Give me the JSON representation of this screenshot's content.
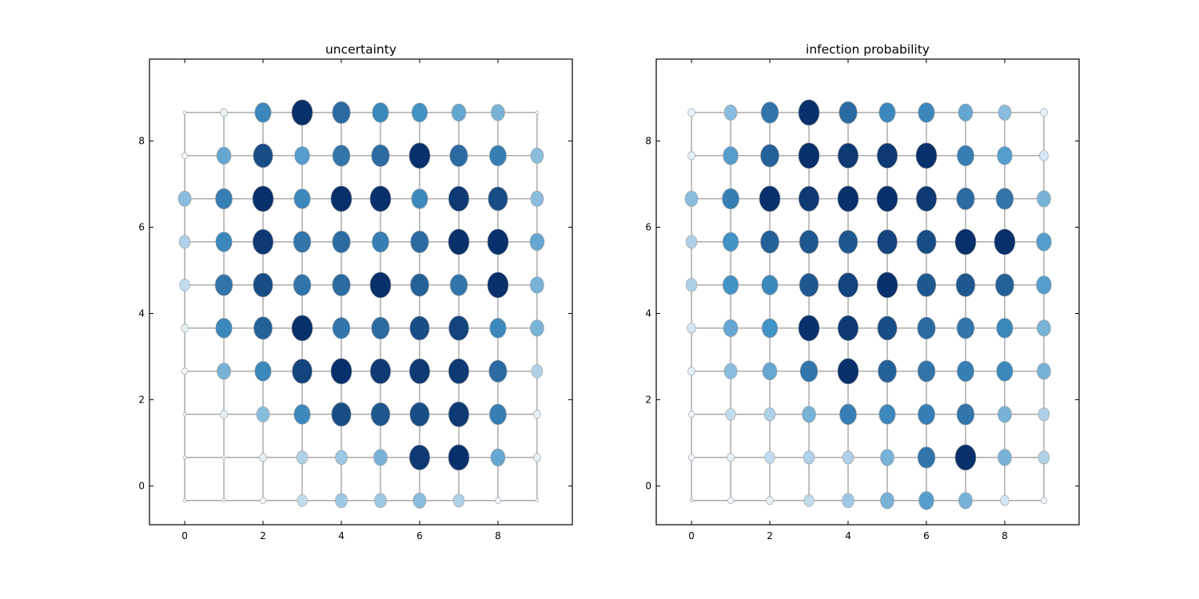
{
  "chart_data": [
    {
      "type": "scatter",
      "title": "uncertainty",
      "xlabel": "",
      "ylabel": "",
      "xlim": [
        -0.9,
        9.9
      ],
      "ylim": [
        -0.9,
        9.9
      ],
      "xticks": [
        0,
        2,
        4,
        6,
        8
      ],
      "yticks": [
        0,
        2,
        4,
        6,
        8
      ],
      "grid_x": [
        0,
        1,
        2,
        3,
        4,
        5,
        6,
        7,
        8,
        9
      ],
      "grid_y": [
        -0.34,
        0.66,
        1.66,
        2.66,
        3.66,
        4.66,
        5.66,
        6.66,
        7.66,
        8.66
      ],
      "colormap": "Blues",
      "colors": {
        "low": "#f7fbff",
        "mid": "#4292c6",
        "high": "#08306b",
        "edge": "#999999",
        "grid": "#808080"
      },
      "rows": [
        {
          "y": 8.66,
          "values": [
            0,
            0.05,
            0.55,
            1.0,
            0.7,
            0.55,
            0.5,
            0.4,
            0.35,
            0
          ]
        },
        {
          "y": 7.66,
          "values": [
            0.02,
            0.4,
            0.85,
            0.45,
            0.65,
            0.7,
            1.0,
            0.7,
            0.6,
            0.3
          ]
        },
        {
          "y": 6.66,
          "values": [
            0.3,
            0.6,
            1.0,
            0.55,
            1.0,
            1.0,
            0.55,
            0.95,
            0.85,
            0.3
          ]
        },
        {
          "y": 5.66,
          "values": [
            0.2,
            0.55,
            0.95,
            0.65,
            0.7,
            0.6,
            0.7,
            1.0,
            1.0,
            0.4
          ]
        },
        {
          "y": 4.66,
          "values": [
            0.15,
            0.65,
            0.85,
            0.65,
            0.7,
            1.0,
            0.75,
            0.65,
            1.0,
            0.35
          ]
        },
        {
          "y": 3.66,
          "values": [
            0.05,
            0.55,
            0.75,
            1.0,
            0.65,
            0.7,
            0.85,
            0.9,
            0.55,
            0.35
          ]
        },
        {
          "y": 2.66,
          "values": [
            0.02,
            0.35,
            0.55,
            0.9,
            1.0,
            0.95,
            0.95,
            0.95,
            0.7,
            0.2
          ]
        },
        {
          "y": 1.66,
          "values": [
            0.0,
            0.05,
            0.3,
            0.55,
            0.85,
            0.8,
            0.85,
            0.95,
            0.6,
            0.05
          ]
        },
        {
          "y": 0.66,
          "values": [
            0.0,
            0.0,
            0.05,
            0.2,
            0.25,
            0.35,
            0.95,
            1.0,
            0.4,
            0.05
          ]
        },
        {
          "y": -0.34,
          "values": [
            0.0,
            0.0,
            0.02,
            0.15,
            0.25,
            0.25,
            0.3,
            0.2,
            0.02,
            0.0
          ]
        }
      ]
    },
    {
      "type": "scatter",
      "title": "infection probability",
      "xlabel": "",
      "ylabel": "",
      "xlim": [
        -0.9,
        9.9
      ],
      "ylim": [
        -0.9,
        9.9
      ],
      "xticks": [
        0,
        2,
        4,
        6,
        8
      ],
      "yticks": [
        0,
        2,
        4,
        6,
        8
      ],
      "grid_x": [
        0,
        1,
        2,
        3,
        4,
        5,
        6,
        7,
        8,
        9
      ],
      "grid_y": [
        -0.34,
        0.66,
        1.66,
        2.66,
        3.66,
        4.66,
        5.66,
        6.66,
        7.66,
        8.66
      ],
      "colormap": "Blues",
      "colors": {
        "low": "#f7fbff",
        "mid": "#4292c6",
        "high": "#08306b",
        "edge": "#999999",
        "grid": "#808080"
      },
      "rows": [
        {
          "y": 8.66,
          "values": [
            0.05,
            0.3,
            0.65,
            1.0,
            0.7,
            0.55,
            0.55,
            0.4,
            0.3,
            0.05
          ]
        },
        {
          "y": 7.66,
          "values": [
            0.05,
            0.45,
            0.75,
            1.0,
            0.95,
            0.95,
            1.0,
            0.6,
            0.45,
            0.1
          ]
        },
        {
          "y": 6.66,
          "values": [
            0.3,
            0.6,
            1.0,
            0.95,
            1.0,
            1.0,
            0.95,
            0.7,
            0.65,
            0.35
          ]
        },
        {
          "y": 5.66,
          "values": [
            0.2,
            0.5,
            0.75,
            0.8,
            0.8,
            0.9,
            0.85,
            1.0,
            1.0,
            0.45
          ]
        },
        {
          "y": 4.66,
          "values": [
            0.2,
            0.5,
            0.55,
            0.8,
            0.9,
            1.0,
            0.8,
            0.8,
            0.75,
            0.45
          ]
        },
        {
          "y": 3.66,
          "values": [
            0.1,
            0.4,
            0.5,
            1.0,
            0.95,
            0.85,
            0.7,
            0.65,
            0.55,
            0.35
          ]
        },
        {
          "y": 2.66,
          "values": [
            0.05,
            0.3,
            0.4,
            0.65,
            1.0,
            0.75,
            0.65,
            0.6,
            0.55,
            0.35
          ]
        },
        {
          "y": 1.66,
          "values": [
            0.02,
            0.15,
            0.2,
            0.35,
            0.6,
            0.55,
            0.6,
            0.65,
            0.35,
            0.2
          ]
        },
        {
          "y": 0.66,
          "values": [
            0.02,
            0.05,
            0.15,
            0.2,
            0.2,
            0.35,
            0.65,
            1.0,
            0.35,
            0.2
          ]
        },
        {
          "y": -0.34,
          "values": [
            0.0,
            0.02,
            0.05,
            0.15,
            0.25,
            0.35,
            0.45,
            0.35,
            0.1,
            0.02
          ]
        }
      ]
    }
  ]
}
